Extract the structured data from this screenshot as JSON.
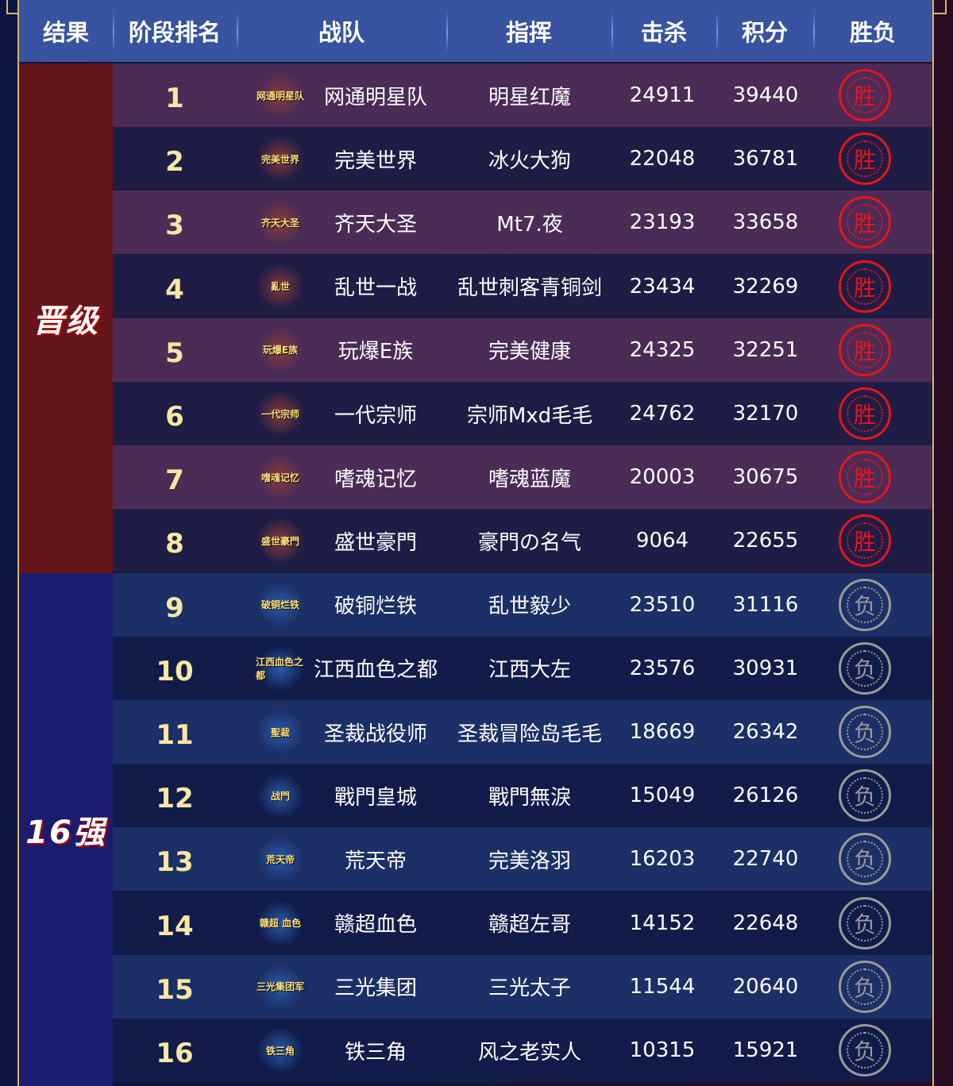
{
  "header": [
    "结果",
    "阶段排名",
    "战队",
    "指挥",
    "击杀",
    "积分",
    "胜负"
  ],
  "groups": {
    "advance": "晋级",
    "top16": "16强"
  },
  "colors": {
    "header": "#3853a0",
    "advance": "#65161a",
    "top16": "#1c1c6e",
    "win": "#e8141b",
    "lose": "#9a9a9a",
    "rank": "#f6e7a3"
  },
  "rows": [
    {
      "rank": "1",
      "logo": "网通明星队",
      "team": "网通明星队",
      "commander": "明星红魔",
      "kills": "24911",
      "score": "39440",
      "result": "胜"
    },
    {
      "rank": "2",
      "logo": "完美世界",
      "team": "完美世界",
      "commander": "冰火大狗",
      "kills": "22048",
      "score": "36781",
      "result": "胜"
    },
    {
      "rank": "3",
      "logo": "齐天大圣",
      "team": "齐天大圣",
      "commander": "Mt7.夜",
      "kills": "23193",
      "score": "33658",
      "result": "胜"
    },
    {
      "rank": "4",
      "logo": "亂世",
      "team": "乱世一战",
      "commander": "乱世刺客青铜剑",
      "kills": "23434",
      "score": "32269",
      "result": "胜"
    },
    {
      "rank": "5",
      "logo": "玩爆E族",
      "team": "玩爆E族",
      "commander": "完美健康",
      "kills": "24325",
      "score": "32251",
      "result": "胜"
    },
    {
      "rank": "6",
      "logo": "一代宗师",
      "team": "一代宗师",
      "commander": "宗师Mxd毛毛",
      "kills": "24762",
      "score": "32170",
      "result": "胜"
    },
    {
      "rank": "7",
      "logo": "嗜魂记忆",
      "team": "嗜魂记忆",
      "commander": "嗜魂蓝魔",
      "kills": "20003",
      "score": "30675",
      "result": "胜"
    },
    {
      "rank": "8",
      "logo": "盛世豪門",
      "team": "盛世豪門",
      "commander": "豪門の名气",
      "kills": "9064",
      "score": "22655",
      "result": "胜"
    },
    {
      "rank": "9",
      "logo": "破铜烂铁",
      "team": "破铜烂铁",
      "commander": "乱世毅少",
      "kills": "23510",
      "score": "31116",
      "result": "负"
    },
    {
      "rank": "10",
      "logo": "江西血色之都",
      "team": "江西血色之都",
      "commander": "江西大左",
      "kills": "23576",
      "score": "30931",
      "result": "负"
    },
    {
      "rank": "11",
      "logo": "聖裁",
      "team": "圣裁战役师",
      "commander": "圣裁冒险岛毛毛",
      "kills": "18669",
      "score": "26342",
      "result": "负"
    },
    {
      "rank": "12",
      "logo": "战門",
      "team": "戰門皇城",
      "commander": "戰門無淚",
      "kills": "15049",
      "score": "26126",
      "result": "负"
    },
    {
      "rank": "13",
      "logo": "荒天帝",
      "team": "荒天帝",
      "commander": "完美洛羽",
      "kills": "16203",
      "score": "22740",
      "result": "负"
    },
    {
      "rank": "14",
      "logo": "赣超 血色",
      "team": "赣超血色",
      "commander": "赣超左哥",
      "kills": "14152",
      "score": "22648",
      "result": "负"
    },
    {
      "rank": "15",
      "logo": "三光集团军",
      "team": "三光集团",
      "commander": "三光太子",
      "kills": "11544",
      "score": "20640",
      "result": "负"
    },
    {
      "rank": "16",
      "logo": "铁三角",
      "team": "铁三角",
      "commander": "风之老实人",
      "kills": "10315",
      "score": "15921",
      "result": "负"
    }
  ]
}
